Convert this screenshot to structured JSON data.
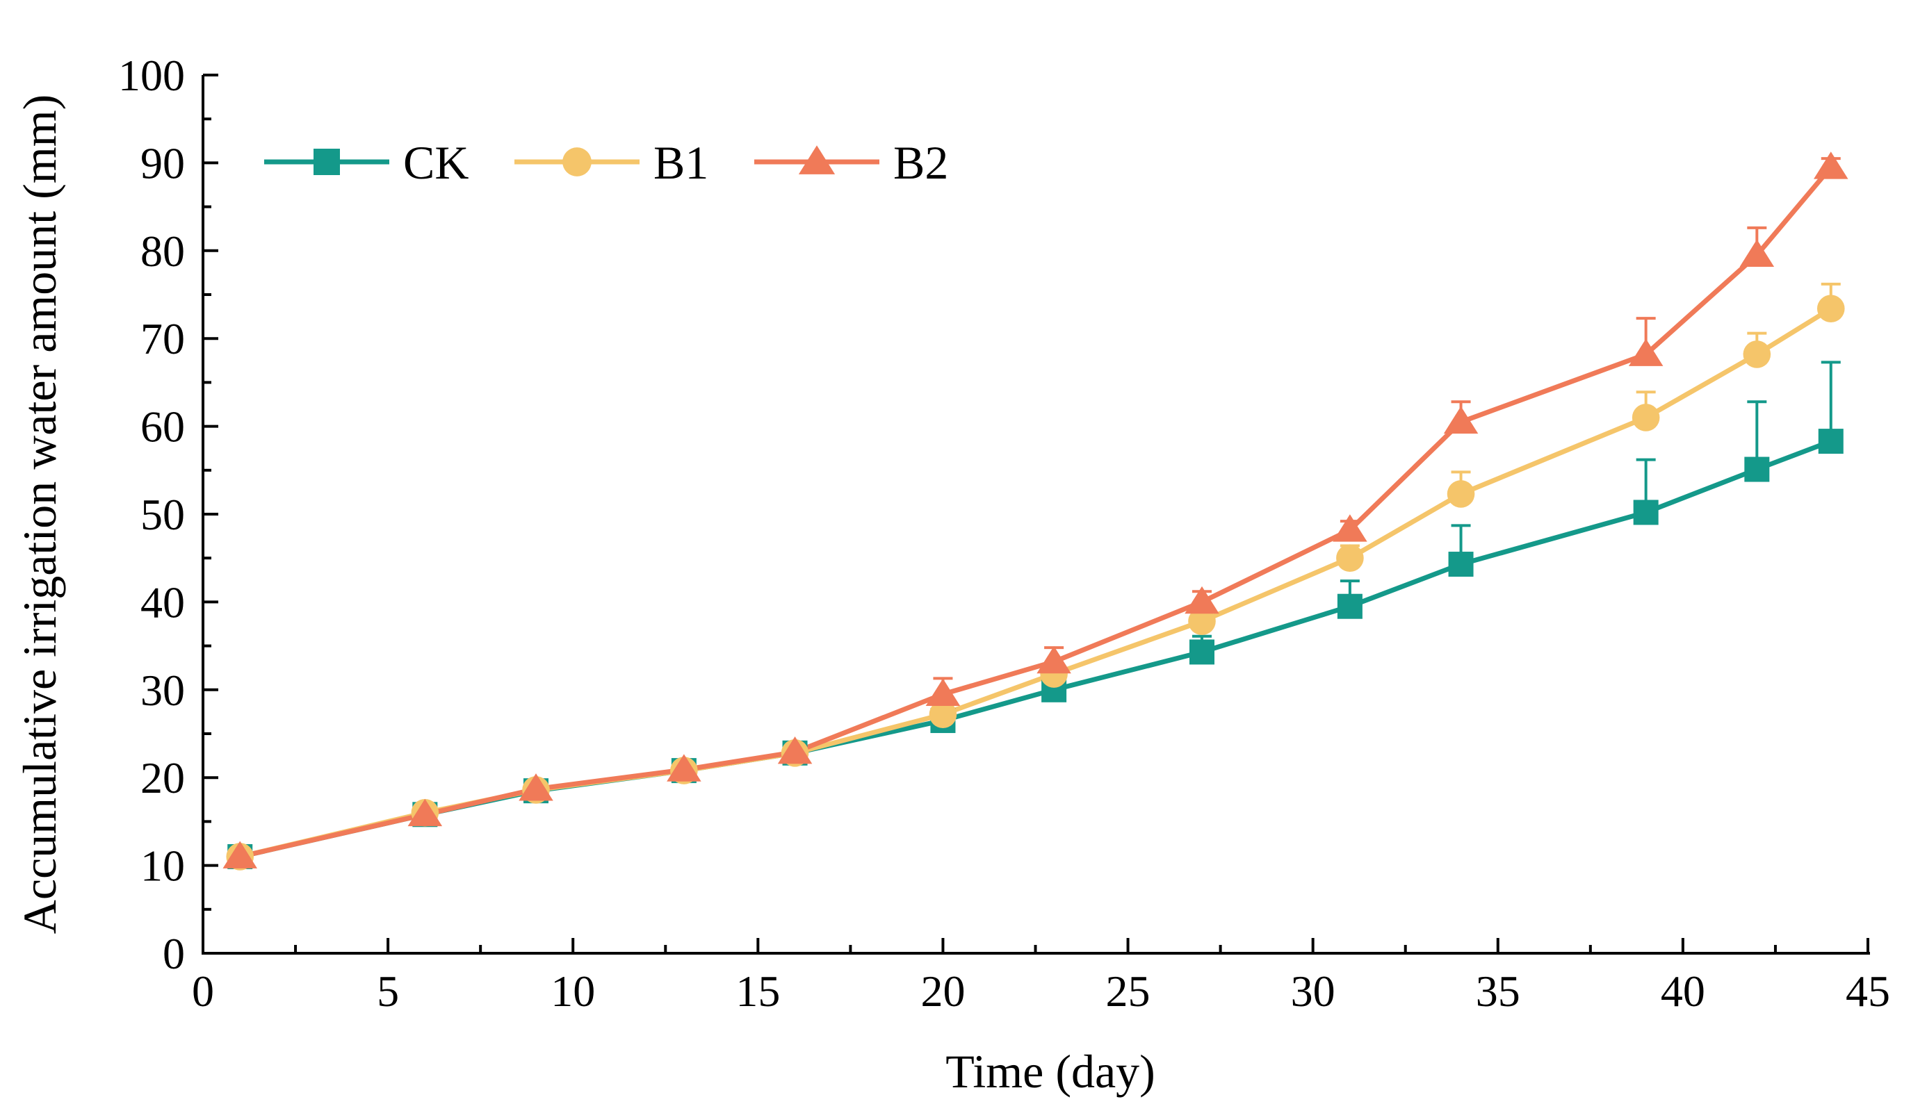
{
  "chart_data": {
    "type": "line",
    "title": "",
    "xlabel": "Time (day)",
    "ylabel": "Accumulative irrigation water amount (mm)",
    "xlim": [
      0,
      45
    ],
    "ylim": [
      0,
      100
    ],
    "xticks": [
      "0",
      "5",
      "10",
      "15",
      "20",
      "25",
      "30",
      "35",
      "40",
      "45"
    ],
    "yticks": [
      "0",
      "10",
      "20",
      "30",
      "40",
      "50",
      "60",
      "70",
      "80",
      "90",
      "100"
    ],
    "x": [
      1,
      6,
      9,
      13,
      16,
      20,
      23,
      27,
      31,
      34,
      39,
      42,
      44
    ],
    "legend_position": "top-left",
    "series": [
      {
        "name": "CK",
        "color": "#14998A",
        "marker": "square",
        "values": [
          11,
          15.8,
          18.5,
          20.8,
          22.8,
          26.5,
          30,
          34.3,
          39.5,
          44.3,
          50.2,
          55.1,
          58.3
        ],
        "errors": [
          0.8,
          0.8,
          0.8,
          0.6,
          0.6,
          0.8,
          1.2,
          1.8,
          2.9,
          4.4,
          6.0,
          7.7,
          9.0
        ]
      },
      {
        "name": "B1",
        "color": "#F5C56A",
        "marker": "circle",
        "values": [
          11,
          16,
          18.6,
          20.8,
          22.8,
          27.2,
          31.8,
          37.8,
          45,
          52.3,
          61,
          68.2,
          73.4
        ],
        "errors": [
          0.5,
          0.5,
          0.5,
          0.4,
          0.5,
          0.8,
          1.0,
          1.2,
          1.4,
          2.5,
          2.9,
          2.4,
          2.8
        ]
      },
      {
        "name": "B2",
        "color": "#F07A58",
        "marker": "triangle",
        "values": [
          11,
          15.8,
          18.7,
          20.9,
          22.9,
          29.5,
          33.2,
          40,
          48.2,
          60.5,
          68.2,
          79.5,
          89.5
        ],
        "errors": [
          0.5,
          0.6,
          0.6,
          0.5,
          0.5,
          1.8,
          1.6,
          1.2,
          1.0,
          2.3,
          4.1,
          3.1,
          1.0
        ]
      }
    ]
  }
}
